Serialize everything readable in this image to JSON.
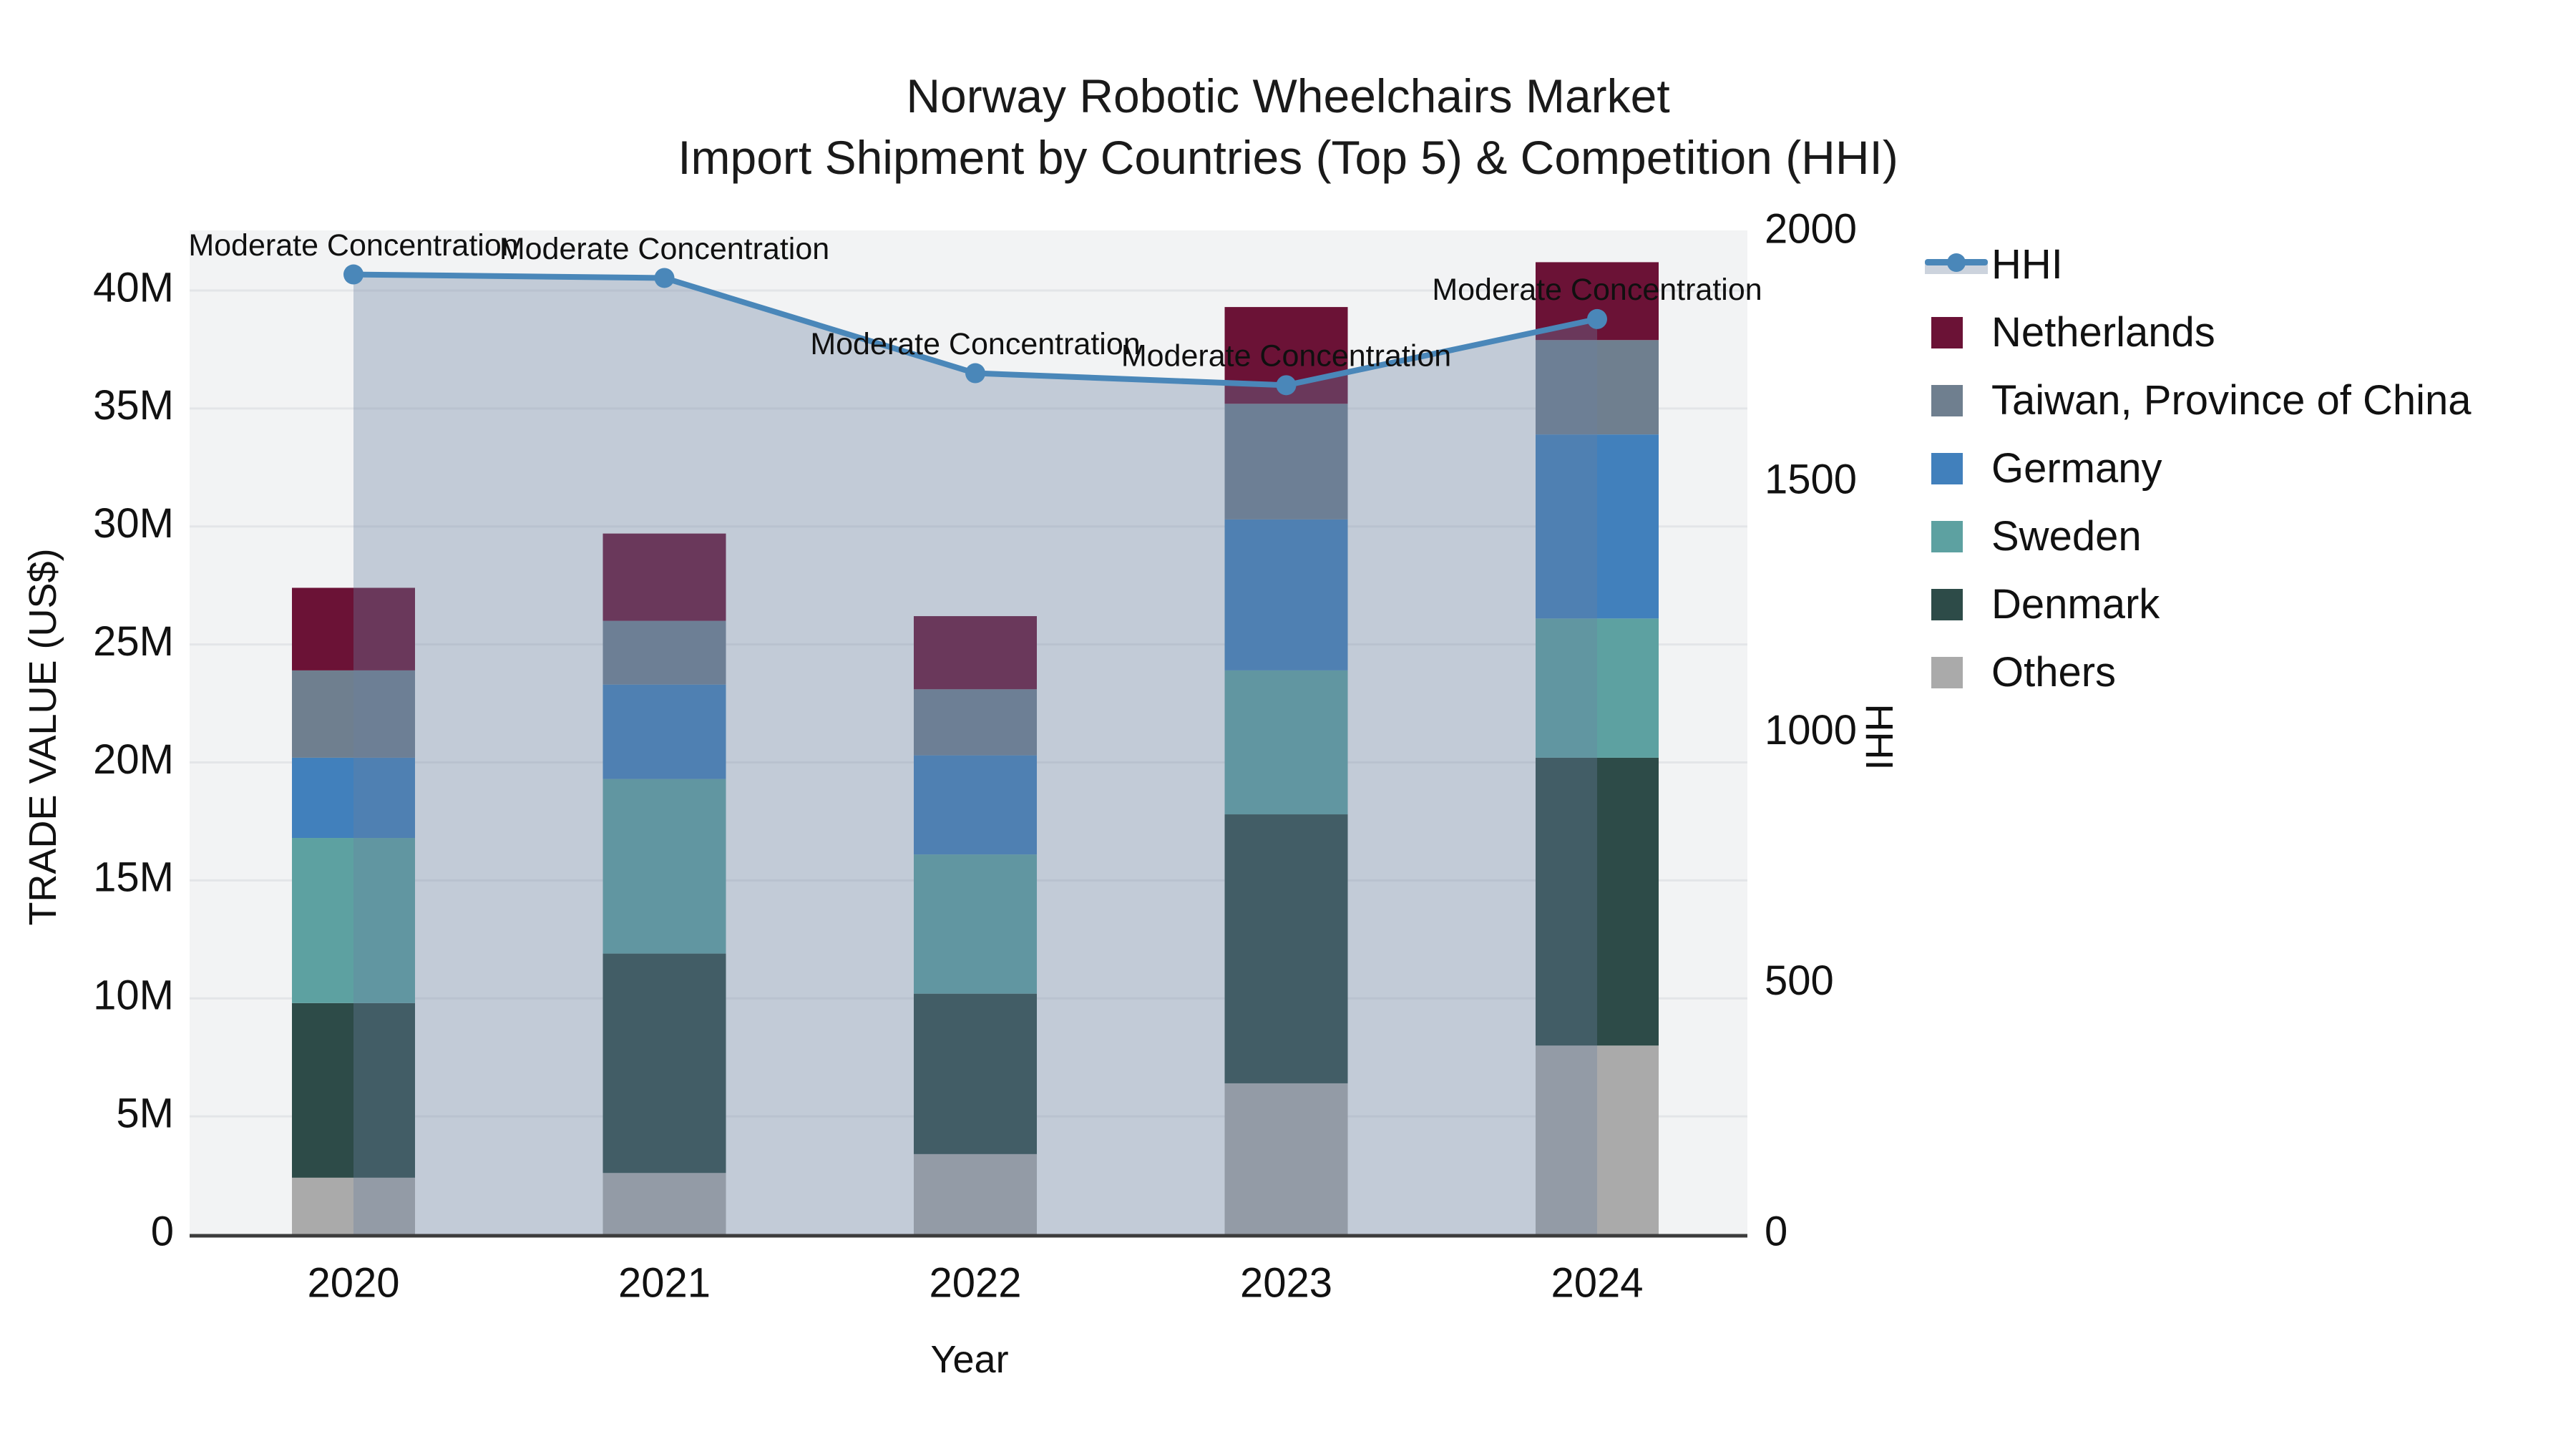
{
  "title": {
    "line1": "Norway Robotic Wheelchairs Market",
    "line2": "Import Shipment by Countries (Top 5) & Competition (HHI)"
  },
  "axes": {
    "x_title": "Year",
    "y_left_title": "TRADE VALUE (US$)",
    "y_right_title": "HHI",
    "left_ticks": [
      "0",
      "5M",
      "10M",
      "15M",
      "20M",
      "25M",
      "30M",
      "35M",
      "40M"
    ],
    "left_tick_values": [
      0,
      5,
      10,
      15,
      20,
      25,
      30,
      35,
      40
    ],
    "right_ticks": [
      "0",
      "500",
      "1000",
      "1500",
      "2000"
    ],
    "right_tick_values": [
      0,
      500,
      1000,
      1500,
      2000
    ]
  },
  "legend": {
    "items": [
      {
        "label": "HHI",
        "type": "line",
        "color": "#4a87b9"
      },
      {
        "label": "Netherlands",
        "type": "square",
        "color": "#6b1236"
      },
      {
        "label": "Taiwan, Province of China",
        "type": "square",
        "color": "#6f7f8f"
      },
      {
        "label": "Germany",
        "type": "square",
        "color": "#4180bc"
      },
      {
        "label": "Sweden",
        "type": "square",
        "color": "#5da1a1"
      },
      {
        "label": "Denmark",
        "type": "square",
        "color": "#2d4b48"
      },
      {
        "label": "Others",
        "type": "square",
        "color": "#aaaaaa"
      }
    ]
  },
  "chart_data": {
    "type": "bar",
    "subtype": "stacked-bars-with-line-overlay",
    "title": "Norway Robotic Wheelchairs Market",
    "subtitle": "Import Shipment by Countries (Top 5) & Competition (HHI)",
    "xlabel": "Year",
    "ylabel_left": "TRADE VALUE (US$)",
    "ylabel_right": "HHI",
    "categories": [
      "2020",
      "2021",
      "2022",
      "2023",
      "2024"
    ],
    "ylim_left_musd": [
      0,
      42.5
    ],
    "ylim_right_hhi": [
      0,
      2000
    ],
    "grid": "horizontal",
    "legend_position": "right",
    "stack_order_bottom_to_top": [
      "Others",
      "Denmark",
      "Sweden",
      "Germany",
      "Taiwan, Province of China",
      "Netherlands"
    ],
    "series": [
      {
        "name": "Netherlands",
        "color": "#6b1236",
        "values_musd": [
          3.5,
          3.7,
          3.1,
          4.1,
          3.3
        ]
      },
      {
        "name": "Taiwan, Province of China",
        "color": "#6f7f8f",
        "values_musd": [
          3.7,
          2.7,
          2.8,
          4.9,
          4.0
        ]
      },
      {
        "name": "Germany",
        "color": "#4180bc",
        "values_musd": [
          3.4,
          4.0,
          4.2,
          6.4,
          7.8
        ]
      },
      {
        "name": "Sweden",
        "color": "#5da1a1",
        "values_musd": [
          7.0,
          7.4,
          5.9,
          6.1,
          5.9
        ]
      },
      {
        "name": "Denmark",
        "color": "#2d4b48",
        "values_musd": [
          7.4,
          9.3,
          6.8,
          11.4,
          12.2
        ]
      },
      {
        "name": "Others",
        "color": "#aaaaaa",
        "values_musd": [
          2.4,
          2.6,
          3.4,
          6.4,
          8.0
        ]
      }
    ],
    "bar_totals_musd": [
      27.4,
      29.7,
      26.2,
      39.3,
      41.2
    ],
    "line": {
      "name": "HHI",
      "color": "#4a87b9",
      "area_fill": "rgba(107,129,160,0.35)",
      "values": [
        1915,
        1908,
        1718,
        1694,
        1826
      ]
    },
    "annotations": [
      {
        "x": "2020",
        "text": "Moderate Concentration"
      },
      {
        "x": "2021",
        "text": "Moderate Concentration"
      },
      {
        "x": "2022",
        "text": "Moderate Concentration"
      },
      {
        "x": "2023",
        "text": "Moderate Concentration"
      },
      {
        "x": "2024",
        "text": "Moderate Concentration"
      }
    ]
  }
}
